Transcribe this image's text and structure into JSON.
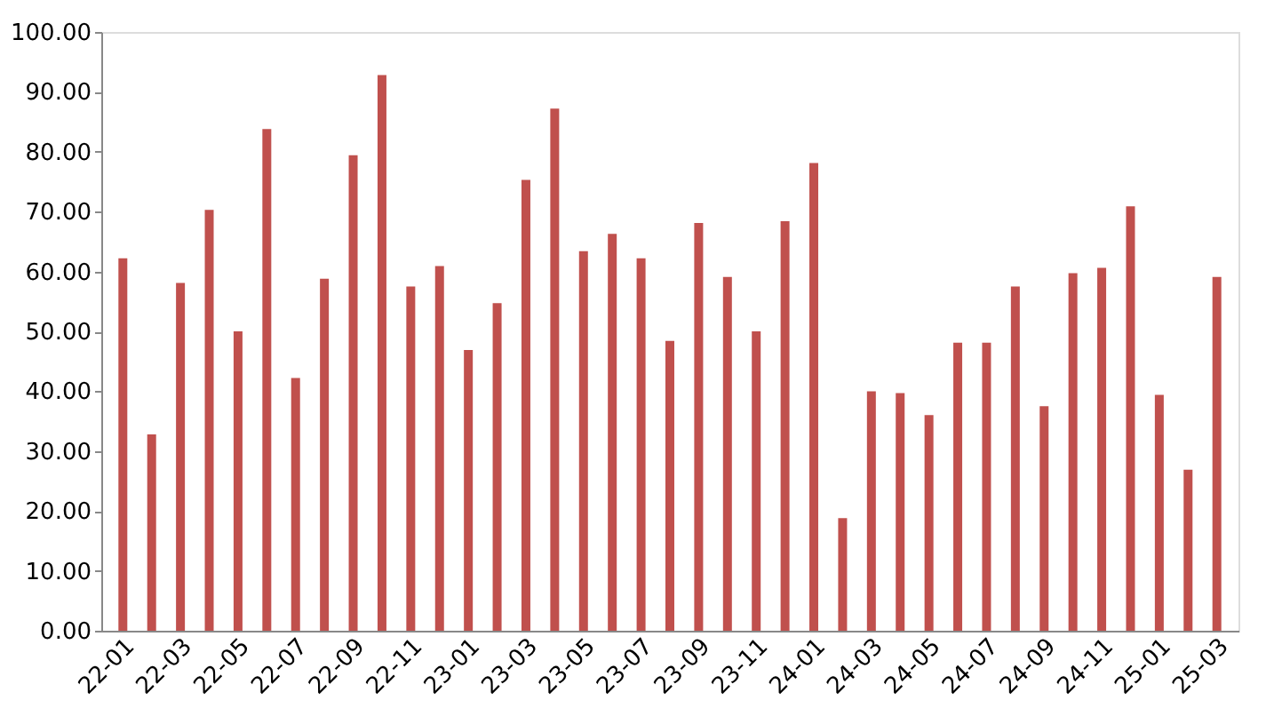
{
  "chart_data": {
    "type": "bar",
    "categories": [
      "22-01",
      null,
      "22-03",
      null,
      "22-05",
      null,
      "22-07",
      null,
      "22-09",
      null,
      "22-11",
      null,
      "23-01",
      null,
      "23-03",
      null,
      "23-05",
      null,
      "23-07",
      null,
      "23-09",
      null,
      "23-11",
      null,
      "24-01",
      null,
      "24-03",
      null,
      "24-05",
      null,
      "24-07",
      null,
      "24-09",
      null,
      "24-11",
      null,
      "25-01",
      null,
      "25-03"
    ],
    "values": [
      62.2,
      32.8,
      58.1,
      70.3,
      50.0,
      83.8,
      42.2,
      58.8,
      79.4,
      92.8,
      57.5,
      60.9,
      46.9,
      54.7,
      75.3,
      87.2,
      63.4,
      66.3,
      62.2,
      48.4,
      68.1,
      59.1,
      50.0,
      68.4,
      78.1,
      18.8,
      40.0,
      39.7,
      36.0,
      48.1,
      48.1,
      57.5,
      37.5,
      59.7,
      60.6,
      70.9,
      39.4,
      26.9,
      59.1
    ],
    "color": "#c0504d",
    "ylim": [
      0,
      100
    ],
    "yticks": [
      {
        "value": 0,
        "label": "0.00"
      },
      {
        "value": 10,
        "label": "10.00"
      },
      {
        "value": 20,
        "label": "20.00"
      },
      {
        "value": 30,
        "label": "30.00"
      },
      {
        "value": 40,
        "label": "40.00"
      },
      {
        "value": 50,
        "label": "50.00"
      },
      {
        "value": 60,
        "label": "60.00"
      },
      {
        "value": 70,
        "label": "70.00"
      },
      {
        "value": 80,
        "label": "80.00"
      },
      {
        "value": 90,
        "label": "90.00"
      },
      {
        "value": 100,
        "label": "100.00"
      }
    ],
    "grid": false
  }
}
